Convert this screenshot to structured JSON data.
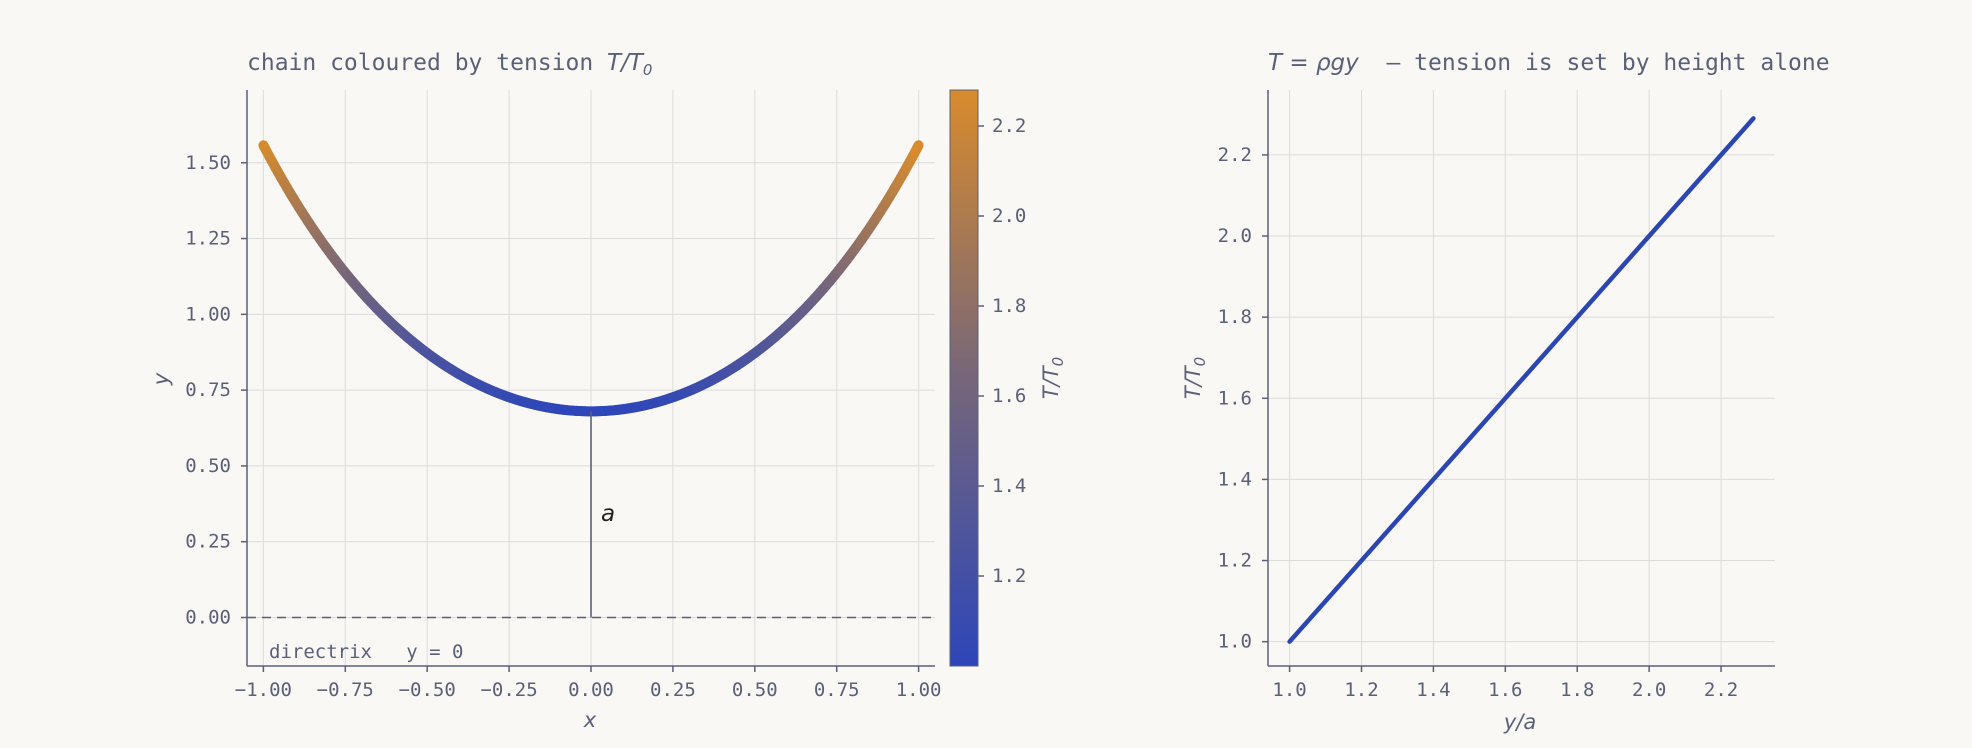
{
  "chart_data": [
    {
      "type": "line",
      "title_prefix": "chain coloured by tension ",
      "title_var": "T",
      "title_slash": "/",
      "title_base": "T",
      "title_sub": "0",
      "xlabel": "x",
      "ylabel": "y",
      "xlim": [
        -1.05,
        1.05
      ],
      "ylim": [
        -0.16,
        1.74
      ],
      "xticks": [
        -1.0,
        -0.75,
        -0.5,
        -0.25,
        0.0,
        0.25,
        0.5,
        0.75,
        1.0
      ],
      "xtick_labels": [
        "−1.00",
        "−0.75",
        "−0.50",
        "−0.25",
        "0.00",
        "0.25",
        "0.50",
        "0.75",
        "1.00"
      ],
      "yticks": [
        0.0,
        0.25,
        0.5,
        0.75,
        1.0,
        1.25,
        1.5
      ],
      "ytick_labels": [
        "0.00",
        "0.25",
        "0.50",
        "0.75",
        "1.00",
        "1.25",
        "1.50"
      ],
      "grid": true,
      "catenary": {
        "a": 0.68,
        "x_range": [
          -1.0,
          1.0
        ]
      },
      "directrix": {
        "y": 0.0,
        "label": "directrix   y = 0"
      },
      "a_marker": {
        "x": 0.0,
        "label": "a"
      },
      "colorbar": {
        "label_T": "T",
        "label_slash": "/",
        "label_base": "T",
        "label_sub": "0",
        "range": [
          1.0,
          2.28
        ],
        "ticks": [
          1.2,
          1.4,
          1.6,
          1.8,
          2.0,
          2.2
        ],
        "tick_labels": [
          "1.2",
          "1.4",
          "1.6",
          "1.8",
          "2.0",
          "2.2"
        ],
        "color_low": "#2d46b9",
        "color_mid": "#76667a",
        "color_high": "#d88b2c"
      }
    },
    {
      "type": "line",
      "title_lhs": "T",
      "title_eq": " = ρg",
      "title_y": "y",
      "title_text": "  — tension is set by height alone",
      "xlabel": "y/a",
      "ylabel_T": "T",
      "ylabel_slash": "/",
      "ylabel_base": "T",
      "ylabel_sub": "0",
      "xlim": [
        0.94,
        2.35
      ],
      "ylim": [
        0.94,
        2.36
      ],
      "xticks": [
        1.0,
        1.2,
        1.4,
        1.6,
        1.8,
        2.0,
        2.2
      ],
      "xtick_labels": [
        "1.0",
        "1.2",
        "1.4",
        "1.6",
        "1.8",
        "2.0",
        "2.2"
      ],
      "yticks": [
        1.0,
        1.2,
        1.4,
        1.6,
        1.8,
        2.0,
        2.2
      ],
      "ytick_labels": [
        "1.0",
        "1.2",
        "1.4",
        "1.6",
        "1.8",
        "2.0",
        "2.2"
      ],
      "grid": true,
      "series": [
        {
          "x": [
            1.0,
            2.29
          ],
          "y": [
            1.0,
            2.29
          ],
          "color": "#2b46b3"
        }
      ]
    }
  ]
}
